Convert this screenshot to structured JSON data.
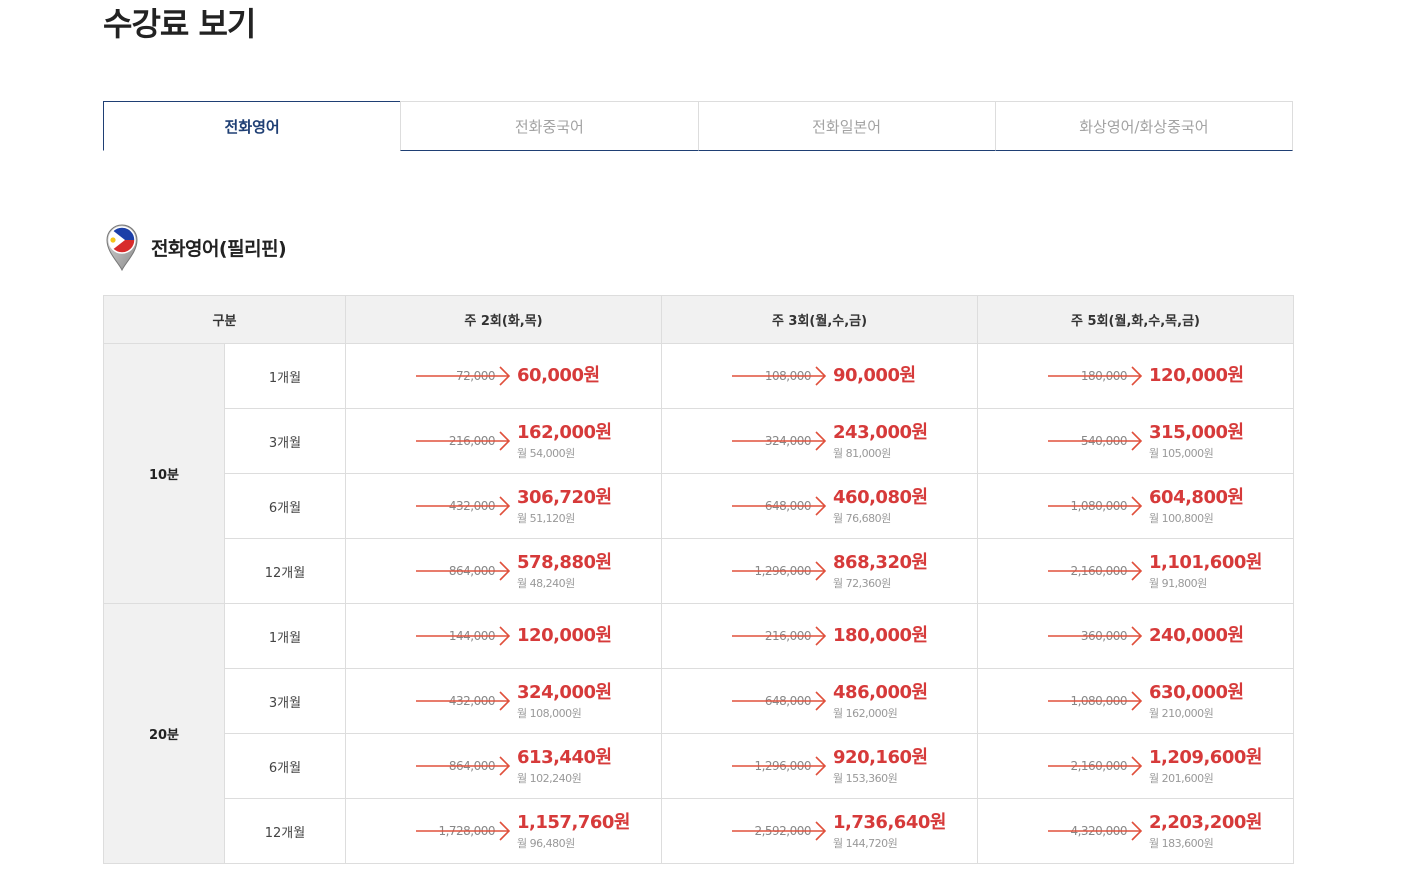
{
  "page": {
    "title": "수강료 보기"
  },
  "tabs": [
    {
      "label": "전화영어",
      "active": true
    },
    {
      "label": "전화중국어",
      "active": false
    },
    {
      "label": "전화일본어",
      "active": false
    },
    {
      "label": "화상영어/화상중국어",
      "active": false
    }
  ],
  "section": {
    "title": "전화영어(필리핀)",
    "flag_icon": "philippines-flag-pin-icon"
  },
  "colors": {
    "accent": "#1f3f74",
    "price": "#d63a3a",
    "arrow": "#e0503c",
    "header_bg": "#f1f1f1",
    "border": "#dddddd"
  },
  "table": {
    "headers": [
      "구분",
      "주 2회(화,목)",
      "주 3회(월,수,금)",
      "주 5회(월,화,수,목,금)"
    ],
    "groups": [
      {
        "label": "10분",
        "rows": [
          {
            "period": "1개월",
            "prices": [
              {
                "original": "72,000",
                "price": "60,000원",
                "monthly": ""
              },
              {
                "original": "108,000",
                "price": "90,000원",
                "monthly": ""
              },
              {
                "original": "180,000",
                "price": "120,000원",
                "monthly": ""
              }
            ]
          },
          {
            "period": "3개월",
            "prices": [
              {
                "original": "216,000",
                "price": "162,000원",
                "monthly": "월 54,000원"
              },
              {
                "original": "324,000",
                "price": "243,000원",
                "monthly": "월 81,000원"
              },
              {
                "original": "540,000",
                "price": "315,000원",
                "monthly": "월 105,000원"
              }
            ]
          },
          {
            "period": "6개월",
            "prices": [
              {
                "original": "432,000",
                "price": "306,720원",
                "monthly": "월 51,120원"
              },
              {
                "original": "648,000",
                "price": "460,080원",
                "monthly": "월 76,680원"
              },
              {
                "original": "1,080,000",
                "price": "604,800원",
                "monthly": "월 100,800원"
              }
            ]
          },
          {
            "period": "12개월",
            "prices": [
              {
                "original": "864,000",
                "price": "578,880원",
                "monthly": "월 48,240원"
              },
              {
                "original": "1,296,000",
                "price": "868,320원",
                "monthly": "월 72,360원"
              },
              {
                "original": "2,160,000",
                "price": "1,101,600원",
                "monthly": "월 91,800원"
              }
            ]
          }
        ]
      },
      {
        "label": "20분",
        "rows": [
          {
            "period": "1개월",
            "prices": [
              {
                "original": "144,000",
                "price": "120,000원",
                "monthly": ""
              },
              {
                "original": "216,000",
                "price": "180,000원",
                "monthly": ""
              },
              {
                "original": "360,000",
                "price": "240,000원",
                "monthly": ""
              }
            ]
          },
          {
            "period": "3개월",
            "prices": [
              {
                "original": "432,000",
                "price": "324,000원",
                "monthly": "월 108,000원"
              },
              {
                "original": "648,000",
                "price": "486,000원",
                "monthly": "월 162,000원"
              },
              {
                "original": "1,080,000",
                "price": "630,000원",
                "monthly": "월 210,000원"
              }
            ]
          },
          {
            "period": "6개월",
            "prices": [
              {
                "original": "864,000",
                "price": "613,440원",
                "monthly": "월 102,240원"
              },
              {
                "original": "1,296,000",
                "price": "920,160원",
                "monthly": "월 153,360원"
              },
              {
                "original": "2,160,000",
                "price": "1,209,600원",
                "monthly": "월 201,600원"
              }
            ]
          },
          {
            "period": "12개월",
            "prices": [
              {
                "original": "1,728,000",
                "price": "1,157,760원",
                "monthly": "월 96,480원"
              },
              {
                "original": "2,592,000",
                "price": "1,736,640원",
                "monthly": "월 144,720원"
              },
              {
                "original": "4,320,000",
                "price": "2,203,200원",
                "monthly": "월 183,600원"
              }
            ]
          }
        ]
      }
    ]
  }
}
